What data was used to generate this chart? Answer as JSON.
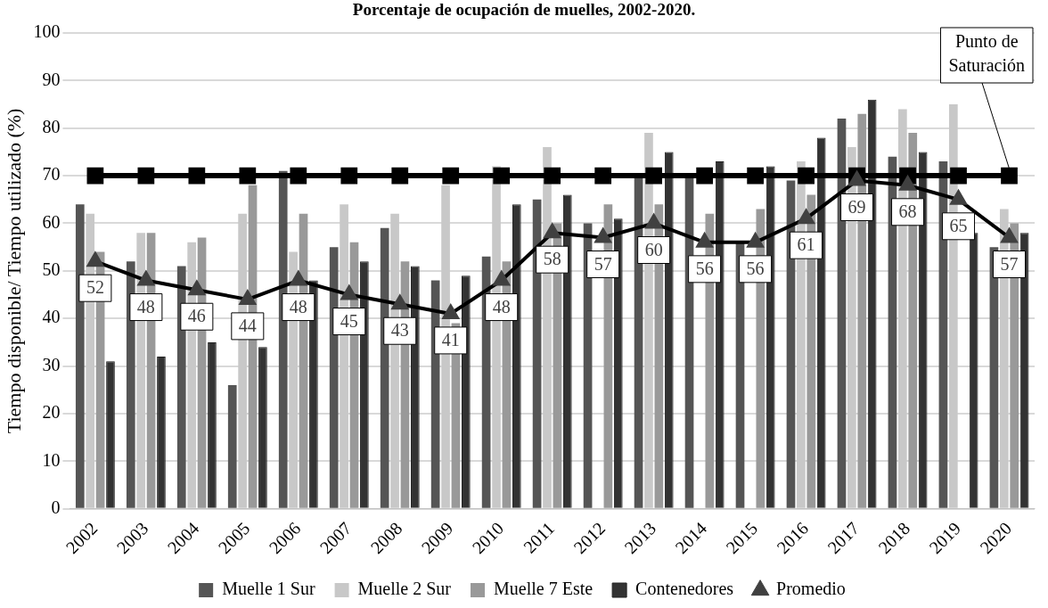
{
  "chart_data": {
    "type": "bar",
    "title": "Porcentaje de ocupación de muelles, 2002-2020.",
    "ylabel": "Tiempo disponible/ Tiempo utilizado (%)",
    "categories": [
      "2002",
      "2003",
      "2004",
      "2005",
      "2006",
      "2007",
      "2008",
      "2009",
      "2010",
      "2011",
      "2012",
      "2013",
      "2014",
      "2015",
      "2016",
      "2017",
      "2018",
      "2019",
      "2020"
    ],
    "series": [
      {
        "name": "Muelle 1 Sur",
        "color": "#555555",
        "values": [
          64,
          52,
          51,
          26,
          71,
          55,
          59,
          48,
          53,
          65,
          60,
          70,
          70,
          56,
          69,
          82,
          74,
          73,
          55
        ]
      },
      {
        "name": "Muelle 2 Sur",
        "color": "#c8c8c8",
        "values": [
          62,
          58,
          56,
          62,
          54,
          64,
          62,
          68,
          72,
          76,
          null,
          79,
          null,
          null,
          73,
          76,
          84,
          85,
          63
        ]
      },
      {
        "name": "Muelle 7 Este",
        "color": "#999999",
        "values": [
          54,
          58,
          57,
          68,
          62,
          56,
          52,
          39,
          52,
          60,
          64,
          64,
          62,
          63,
          66,
          83,
          79,
          null,
          60
        ]
      },
      {
        "name": "Contenedores",
        "color": "#333333",
        "values": [
          31,
          32,
          35,
          34,
          48,
          52,
          51,
          49,
          64,
          66,
          61,
          75,
          73,
          72,
          78,
          86,
          75,
          58,
          58
        ]
      },
      {
        "name": "Promedio",
        "type": "line",
        "color": "#404040",
        "marker": "triangle",
        "values": [
          52,
          48,
          46,
          44,
          48,
          45,
          43,
          41,
          48,
          58,
          57,
          60,
          56,
          56,
          61,
          69,
          68,
          65,
          57
        ],
        "value_labels": [
          "52",
          "48",
          "46",
          "44",
          "48",
          "45",
          "43",
          "41",
          "48",
          "58",
          "57",
          "60",
          "56",
          "56",
          "61",
          "69",
          "68",
          "65",
          "57"
        ]
      },
      {
        "type": "line",
        "color": "#000000",
        "marker": "square",
        "values": [
          70,
          70,
          70,
          70,
          70,
          70,
          70,
          70,
          70,
          70,
          70,
          70,
          70,
          70,
          70,
          70,
          70,
          70,
          70
        ]
      }
    ],
    "annotations": [
      {
        "text": "Punto de Saturación",
        "x": "2020",
        "y": 70
      }
    ],
    "ylim": [
      0,
      100
    ],
    "yticks": [
      0,
      10,
      20,
      30,
      40,
      50,
      60,
      70,
      80,
      90,
      100
    ],
    "grid": "y",
    "legend": "bottom"
  }
}
